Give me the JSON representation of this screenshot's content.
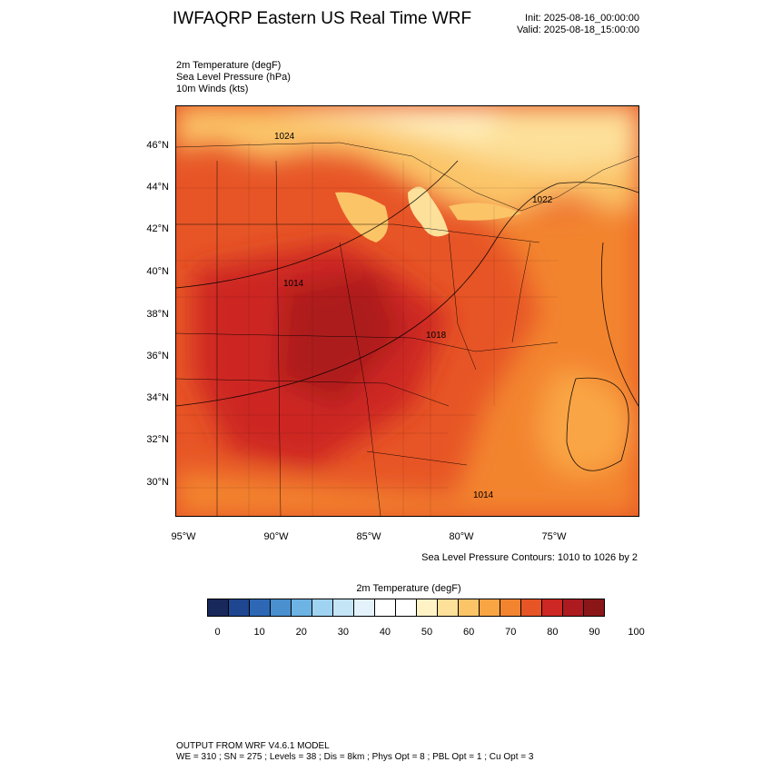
{
  "header": {
    "title": "IWFAQRP Eastern US Real Time WRF",
    "init": "Init: 2025-08-16_00:00:00",
    "valid": "Valid: 2025-08-18_15:00:00"
  },
  "fields": {
    "temp": "2m Temperature   (degF)",
    "slp": "Sea Level Pressure   (hPa)",
    "winds": "10m Winds   (kts)"
  },
  "map": {
    "lat_labels": [
      "46°N",
      "44°N",
      "42°N",
      "40°N",
      "38°N",
      "36°N",
      "34°N",
      "32°N",
      "30°N"
    ],
    "lon_labels": [
      "95°W",
      "90°W",
      "85°W",
      "80°W",
      "75°W"
    ],
    "pressure_labels": [
      "1024",
      "1022",
      "1014",
      "1018",
      "1014"
    ],
    "contour_note": "Sea Level Pressure Contours: 1010 to 1026 by 2"
  },
  "colorbar": {
    "title": "2m Temperature  (degF)",
    "colors": [
      "#18285a",
      "#1f4690",
      "#2e68b5",
      "#4a90cf",
      "#6db3e4",
      "#9fd3f1",
      "#c4e5f6",
      "#e4f3fb",
      "#ffffff",
      "#ffffff",
      "#fff3c6",
      "#fde09a",
      "#fbc467",
      "#f9a544",
      "#f3842f",
      "#e75526",
      "#cd2823",
      "#ad1a1f",
      "#8b1618"
    ],
    "labels": [
      "0",
      "10",
      "20",
      "30",
      "40",
      "50",
      "60",
      "70",
      "80",
      "90",
      "100"
    ]
  },
  "footer": {
    "line1": "OUTPUT FROM WRF V4.6.1 MODEL",
    "line2": "WE = 310 ; SN = 275 ; Levels = 38 ; Dis = 8km ; Phys Opt = 8 ; PBL Opt = 1 ; Cu Opt = 3"
  }
}
